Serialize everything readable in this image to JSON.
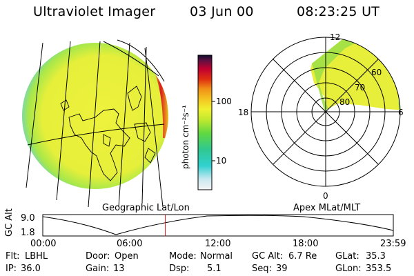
{
  "header": {
    "instrument": "Ultraviolet Imager",
    "date": "03 Jun 00",
    "time": "08:23:25 UT"
  },
  "colorbar": {
    "unit_label": "photon cm⁻²s⁻¹",
    "ticks": [
      "100",
      "10"
    ]
  },
  "polar": {
    "mlt_labels": {
      "top": "12",
      "left": "18",
      "right": "6",
      "bottom": "0"
    },
    "lat_labels": [
      "60",
      "70",
      "80"
    ]
  },
  "panel_titles": {
    "left": "Geographic Lat/Lon",
    "right": "Apex MLat/MLT"
  },
  "altitude_plot": {
    "ylabel": "GC Alt",
    "y_ticks": [
      "9.0",
      "1.8"
    ],
    "x_ticks": [
      "00:00",
      "06:00",
      "12:00",
      "18:00",
      "23:59"
    ],
    "current_time_hours": 8.39
  },
  "info": {
    "flt": {
      "label": "Flt:",
      "value": "LBHL"
    },
    "ip": {
      "label": "IP:",
      "value": "36.0"
    },
    "door": {
      "label": "Door:",
      "value": "Open"
    },
    "gain": {
      "label": "Gain:",
      "value": "13"
    },
    "mode": {
      "label": "Mode:",
      "value": "Normal"
    },
    "dsp": {
      "label": "Dsp:",
      "value": "5.1"
    },
    "gcalt": {
      "label": "GC Alt:",
      "value": "6.7 Re"
    },
    "seq": {
      "label": "Seq:",
      "value": "39"
    },
    "glat": {
      "label": "GLat:",
      "value": "35.3"
    },
    "glon": {
      "label": "GLon:",
      "value": "353.5"
    }
  },
  "colors": {
    "disk_fill": "#e8f23a",
    "disk_edge": "#7fe04a",
    "aurora": "#d91c1c",
    "marker": "#e01010"
  }
}
